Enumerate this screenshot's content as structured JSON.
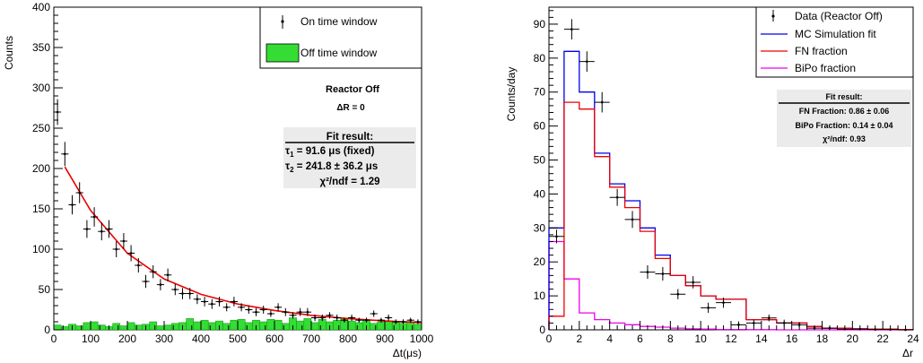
{
  "chart_data": [
    {
      "type": "histogram",
      "xlabel": "Δt(μs)",
      "ylabel": "Counts",
      "xlim": [
        0,
        1000
      ],
      "ylim": [
        0,
        400
      ],
      "xticks": [
        0,
        100,
        200,
        300,
        400,
        500,
        600,
        700,
        800,
        900,
        1000
      ],
      "yticks": [
        0,
        50,
        100,
        150,
        200,
        250,
        300,
        350,
        400
      ],
      "legend": {
        "position": "top-right",
        "on_label": "On time window",
        "off_label": "Off time window"
      },
      "annotations": {
        "line1": "Reactor Off",
        "line2": "ΔR = 0"
      },
      "fit_box": {
        "title": "Fit result:",
        "tau1": "91.6",
        "tau1_suffix": "μs (fixed)",
        "tau2": "241.8",
        "tau2_err": "36.2",
        "tau2_unit": "μs",
        "chi2": "χ²/ndf = 1.29"
      },
      "bin_width": 20,
      "on_window": {
        "x": [
          10,
          30,
          50,
          70,
          90,
          110,
          130,
          150,
          170,
          190,
          210,
          230,
          250,
          270,
          290,
          310,
          330,
          350,
          370,
          390,
          410,
          430,
          450,
          470,
          490,
          510,
          530,
          550,
          570,
          590,
          610,
          630,
          650,
          670,
          690,
          710,
          730,
          750,
          770,
          790,
          810,
          830,
          850,
          870,
          890,
          910,
          930,
          950,
          970,
          990
        ],
        "y": [
          270,
          218,
          155,
          170,
          125,
          140,
          122,
          125,
          100,
          110,
          95,
          80,
          60,
          72,
          56,
          68,
          50,
          45,
          45,
          38,
          35,
          32,
          35,
          28,
          35,
          28,
          25,
          22,
          25,
          20,
          28,
          22,
          18,
          22,
          22,
          15,
          15,
          18,
          15,
          12,
          15,
          12,
          12,
          20,
          12,
          15,
          10,
          10,
          12,
          10
        ],
        "yerr": [
          16,
          15,
          12,
          13,
          11,
          12,
          11,
          11,
          10,
          10,
          10,
          9,
          8,
          8,
          7,
          8,
          7,
          7,
          7,
          6,
          6,
          6,
          6,
          5,
          6,
          5,
          5,
          5,
          5,
          4,
          5,
          5,
          4,
          5,
          5,
          4,
          4,
          4,
          4,
          3,
          4,
          3,
          3,
          4,
          3,
          4,
          3,
          3,
          3,
          3
        ]
      },
      "off_window": [
        6,
        4,
        7,
        5,
        9,
        10,
        6,
        4,
        8,
        5,
        9,
        6,
        7,
        10,
        5,
        6,
        8,
        9,
        14,
        10,
        12,
        9,
        11,
        8,
        12,
        13,
        9,
        12,
        10,
        13,
        12,
        8,
        15,
        11,
        14,
        9,
        13,
        10,
        12,
        14,
        11,
        9,
        12,
        8,
        10,
        11,
        9,
        8,
        10,
        7
      ],
      "fit_curve": {
        "x": [
          30,
          100,
          200,
          300,
          400,
          500,
          600,
          700,
          800,
          900,
          1000
        ],
        "y": [
          202,
          148,
          95,
          63,
          44,
          32,
          24,
          18,
          14,
          11,
          9
        ]
      }
    },
    {
      "type": "histogram",
      "xlabel": "Δr",
      "ylabel": "Counts/day",
      "xlim": [
        0,
        24
      ],
      "ylim": [
        0,
        95
      ],
      "xticks": [
        0,
        2,
        4,
        6,
        8,
        10,
        12,
        14,
        16,
        18,
        20,
        22,
        24
      ],
      "yticks": [
        0,
        10,
        20,
        30,
        40,
        50,
        60,
        70,
        80,
        90
      ],
      "legend": {
        "position": "top-right",
        "items": [
          "Data (Reactor Off)",
          "MC Simulation fit",
          "FN fraction",
          "BiPo fraction"
        ]
      },
      "fit_box": {
        "title": "Fit result:",
        "fn_label": "FN Fraction: 0.86",
        "fn_err": "0.06",
        "bipo_label": "BiPo Fraction: 0.14",
        "bipo_err": "0.04",
        "chi2": "χ²/ndf: 0.93"
      },
      "bin_edges": [
        0,
        1,
        2,
        3,
        4,
        5,
        6,
        7,
        8,
        9,
        10,
        11,
        12,
        13,
        14,
        15,
        16,
        17,
        18,
        19,
        20,
        21,
        22,
        23,
        24
      ],
      "mc_fit": [
        30,
        82,
        70,
        52,
        43,
        38,
        30,
        22,
        16,
        13,
        10,
        9,
        9,
        3,
        3,
        2,
        2,
        1,
        0.5,
        0.5,
        0.3,
        0.2,
        0.2,
        0.1
      ],
      "fn_fraction": [
        4,
        67,
        65,
        51,
        42,
        36,
        29,
        21,
        16,
        13,
        10,
        9,
        9,
        3,
        3,
        2,
        2,
        1,
        0.5,
        0.5,
        0.3,
        0.2,
        0.2,
        0.1
      ],
      "bipo_fraction": [
        26,
        15,
        5,
        3,
        2,
        1.5,
        1,
        0.8,
        0.5,
        0.3,
        0.2,
        0.1,
        0.1,
        0.05,
        0.05,
        0,
        0,
        0,
        0,
        0,
        0,
        0,
        0,
        0
      ],
      "data_points": {
        "x": [
          0.5,
          1.5,
          2.5,
          3.5,
          4.5,
          5.5,
          6.5,
          7.5,
          8.5,
          9.5,
          10.5,
          11.5,
          12.5,
          13.5,
          14.5,
          15.5,
          16.5,
          17.5,
          18.5,
          19.5,
          20.5,
          21.5,
          22.5,
          23.5
        ],
        "y": [
          27.5,
          88.5,
          79,
          67,
          39,
          32.5,
          17,
          16.5,
          10.5,
          14,
          6.5,
          8,
          1.5,
          2,
          3.5,
          2,
          1.5,
          0.5,
          0.5,
          0.2,
          0.2,
          0.1,
          0.1,
          0
        ],
        "yerr": [
          2,
          3,
          3,
          3,
          2.5,
          2.5,
          2,
          2,
          1.5,
          1.8,
          1.5,
          1.5,
          1,
          1,
          1,
          1,
          0.8,
          0.5,
          0.5,
          0.4,
          0.4,
          0.3,
          0.3,
          0.2
        ]
      }
    }
  ]
}
